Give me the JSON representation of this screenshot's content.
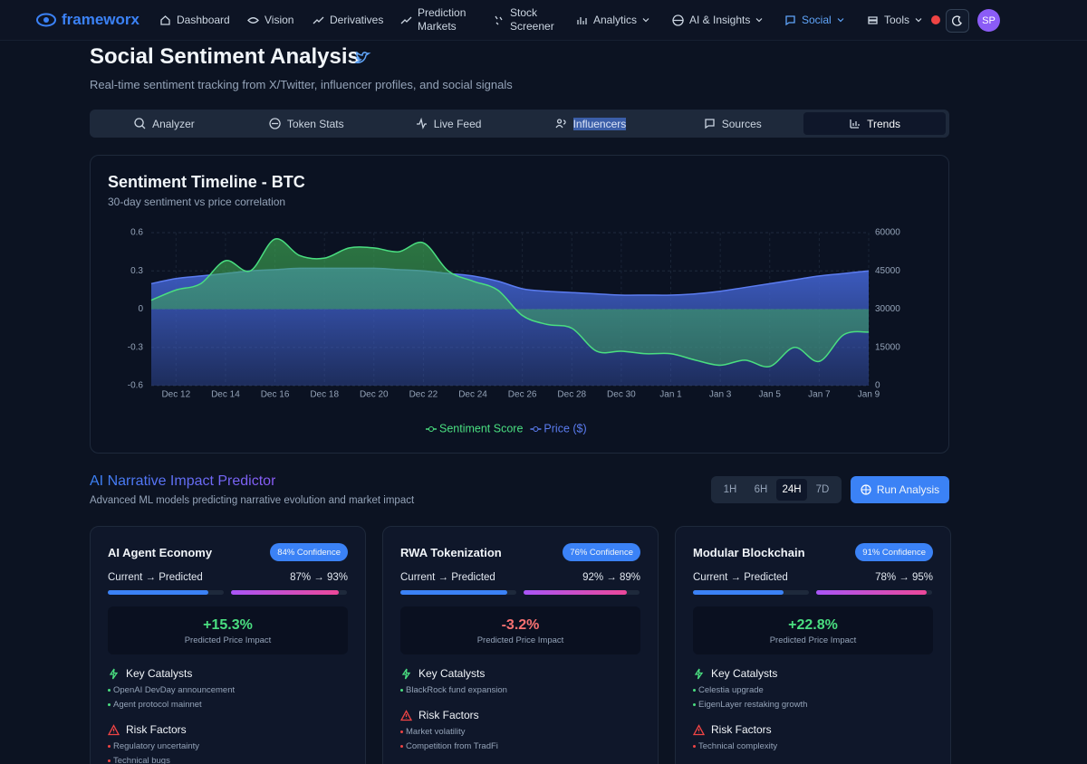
{
  "nav": {
    "brand": "frameworx",
    "items": [
      "Dashboard",
      "Vision",
      "Derivatives",
      "Prediction Markets",
      "Stock Screener",
      "Analytics",
      "AI & Insights",
      "Social",
      "Tools"
    ],
    "dropdowns": [
      5,
      6,
      7,
      8
    ],
    "active": 7,
    "avatar": "SP"
  },
  "header": {
    "title": "Social Sentiment Analysis",
    "subtitle": "Real-time sentiment tracking from X/Twitter, influencer profiles, and social signals"
  },
  "tabs": {
    "items": [
      "Analyzer",
      "Token Stats",
      "Live Feed",
      "Influencers",
      "Sources",
      "Trends"
    ],
    "active": 5,
    "text_selected": 3
  },
  "chart_data": {
    "type": "area",
    "title": "Sentiment Timeline - BTC",
    "subtitle": "30-day sentiment vs price correlation",
    "categories": [
      null,
      "Dec 12",
      null,
      "Dec 14",
      null,
      "Dec 16",
      null,
      "Dec 18",
      null,
      "Dec 20",
      null,
      "Dec 22",
      null,
      "Dec 24",
      null,
      "Dec 26",
      null,
      "Dec 28",
      null,
      "Dec 30",
      null,
      "Jan 1",
      null,
      "Jan 3",
      null,
      "Jan 5",
      null,
      "Jan 7",
      null,
      "Jan 9"
    ],
    "series": [
      {
        "name": "Sentiment Score",
        "color": "#4ade80",
        "fill": "#3fae55",
        "values": [
          0.07,
          0.15,
          0.2,
          0.38,
          0.3,
          0.55,
          0.42,
          0.4,
          0.48,
          0.48,
          0.45,
          0.52,
          0.3,
          0.22,
          0.15,
          -0.05,
          -0.12,
          -0.15,
          -0.33,
          -0.33,
          -0.35,
          -0.35,
          -0.4,
          -0.44,
          -0.4,
          -0.45,
          -0.3,
          -0.41,
          -0.2,
          -0.18
        ]
      },
      {
        "name": "Price ($)",
        "color": "#5b7cf0",
        "fill": "#3f5fc8",
        "axis": "y2",
        "values": [
          40000,
          42000,
          43000,
          44000,
          45000,
          45500,
          46000,
          46000,
          46000,
          46000,
          45500,
          45000,
          44000,
          43000,
          41000,
          38000,
          37000,
          36500,
          36000,
          35500,
          35500,
          35500,
          36000,
          37000,
          38500,
          40000,
          41500,
          43000,
          44000,
          45000
        ]
      }
    ],
    "ylim": [
      -0.6,
      0.6
    ],
    "yticks": [
      -0.6,
      -0.3,
      0,
      0.3,
      0.6
    ],
    "y2lim": [
      0,
      60000
    ],
    "y2ticks": [
      0,
      15000,
      30000,
      45000,
      60000
    ],
    "grid": true,
    "legend": "bottom"
  },
  "predictor": {
    "title": "AI Narrative Impact Predictor",
    "subtitle": "Advanced ML models predicting narrative evolution and market impact",
    "timeframes": [
      "1H",
      "6H",
      "24H",
      "7D"
    ],
    "active": 2,
    "button": "Run Analysis",
    "cards": [
      {
        "title": "AI Agent Economy",
        "confidence": {
          "value": 84,
          "label": "84% Confidence"
        },
        "progress_label": "Current → Predicted",
        "current": 87,
        "predicted": 93,
        "progress_text": "87% → 93%",
        "impact": "+15.3%",
        "impact_color": "#4ade80",
        "impact_label": "Predicted Price Impact",
        "catalysts_title": "Key Catalysts",
        "catalysts": [
          "OpenAI DevDay announcement",
          "Agent protocol mainnet"
        ],
        "risks_title": "Risk Factors",
        "risks": [
          "Regulatory uncertainty",
          "Technical bugs"
        ]
      },
      {
        "title": "RWA Tokenization",
        "confidence": {
          "value": 76,
          "label": "76% Confidence"
        },
        "progress_label": "Current → Predicted",
        "current": 92,
        "predicted": 89,
        "progress_text": "92% → 89%",
        "impact": "-3.2%",
        "impact_color": "#f87171",
        "impact_label": "Predicted Price Impact",
        "catalysts_title": "Key Catalysts",
        "catalysts": [
          "BlackRock fund expansion"
        ],
        "risks_title": "Risk Factors",
        "risks": [
          "Market volatility",
          "Competition from TradFi"
        ]
      },
      {
        "title": "Modular Blockchain",
        "confidence": {
          "value": 91,
          "label": "91% Confidence"
        },
        "progress_label": "Current → Predicted",
        "current": 78,
        "predicted": 95,
        "progress_text": "78% → 95%",
        "impact": "+22.8%",
        "impact_color": "#4ade80",
        "impact_label": "Predicted Price Impact",
        "catalysts_title": "Key Catalysts",
        "catalysts": [
          "Celestia upgrade",
          "EigenLayer restaking growth"
        ],
        "risks_title": "Risk Factors",
        "risks": [
          "Technical complexity"
        ]
      }
    ]
  }
}
